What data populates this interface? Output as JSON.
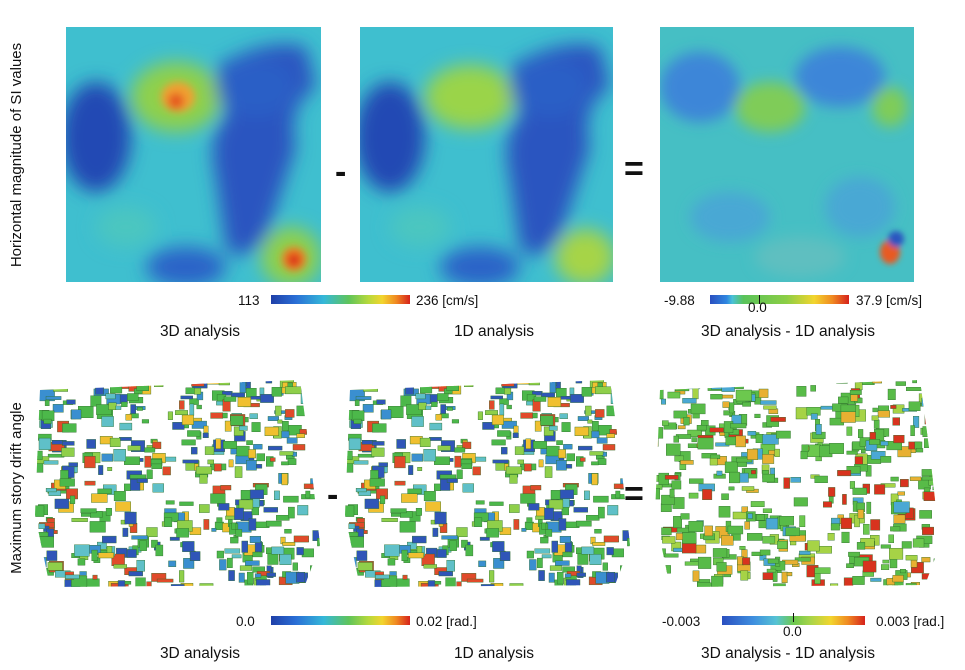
{
  "row1": {
    "ylabel": "Horizontal magnitude of SI values",
    "colorbar_left": {
      "min": "113",
      "max": "236 [cm/s]"
    },
    "colorbar_right": {
      "min": "-9.88",
      "zero": "0.0",
      "max": "37.9 [cm/s]"
    }
  },
  "row2": {
    "ylabel": "Maximum story drift angle",
    "colorbar_left": {
      "min": "0.0",
      "max": "0.02 [rad.]"
    },
    "colorbar_right": {
      "min": "-0.003",
      "zero": "0.0",
      "max": "0.003 [rad.]"
    }
  },
  "operators": {
    "minus": "-",
    "equals": "="
  },
  "captions": {
    "analysis_3d": "3D analysis",
    "analysis_1d": "1D analysis",
    "difference": "3D analysis - 1D analysis"
  },
  "colors": {
    "low": "#1f3fa8",
    "mid": "#3fbfcf",
    "green": "#5fc45a",
    "yellow": "#f2d52e",
    "high": "#d6221c"
  }
}
